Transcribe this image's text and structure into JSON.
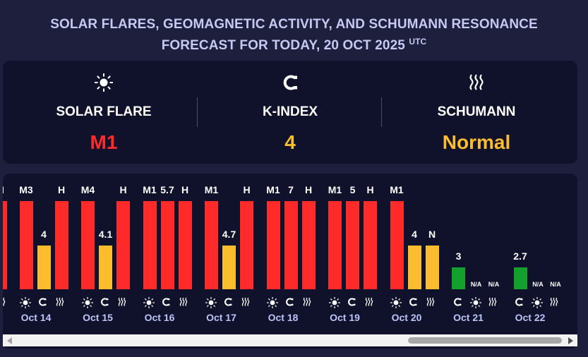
{
  "header": {
    "line1": "SOLAR FLARES, GEOMAGNETIC ACTIVITY, AND SCHUMANN RESONANCE",
    "line2": "FORECAST FOR TODAY, 20 OCT 2025",
    "utc": "UTC"
  },
  "summary": {
    "items": [
      {
        "label": "SOLAR FLARE",
        "value": "M1",
        "icon": "sun-icon",
        "color": "#ff2a2a"
      },
      {
        "label": "K-INDEX",
        "value": "4",
        "icon": "magnet-icon",
        "color": "#fbbd2e"
      },
      {
        "label": "SCHUMANN",
        "value": "Normal",
        "icon": "waves-icon",
        "color": "#fbbd2e"
      }
    ]
  },
  "colors": {
    "high": "#ff2a2a",
    "medium": "#fbbd2e",
    "low": "#14a02c"
  },
  "chart_data": {
    "type": "bar",
    "note": "Bar heights are qualitative indicators; printed labels are the values.",
    "partial_left": {
      "label": "I",
      "color": "red",
      "level": 1.0
    },
    "days": [
      {
        "date": "Oct 14",
        "bars": [
          {
            "kind": "solar",
            "label": "M3",
            "color": "red",
            "level": 1.0
          },
          {
            "kind": "kindex",
            "label": "4",
            "color": "yellow",
            "level": 0.5
          },
          {
            "kind": "schumann",
            "label": "H",
            "color": "red",
            "level": 1.0
          }
        ]
      },
      {
        "date": "Oct 15",
        "bars": [
          {
            "kind": "solar",
            "label": "M4",
            "color": "red",
            "level": 1.0
          },
          {
            "kind": "kindex",
            "label": "4.1",
            "color": "yellow",
            "level": 0.5
          },
          {
            "kind": "schumann",
            "label": "H",
            "color": "red",
            "level": 1.0
          }
        ]
      },
      {
        "date": "Oct 16",
        "bars": [
          {
            "kind": "solar",
            "label": "M1",
            "color": "red",
            "level": 1.0
          },
          {
            "kind": "kindex",
            "label": "5.7",
            "color": "red",
            "level": 1.0
          },
          {
            "kind": "schumann",
            "label": "H",
            "color": "red",
            "level": 1.0
          }
        ]
      },
      {
        "date": "Oct 17",
        "bars": [
          {
            "kind": "solar",
            "label": "M1",
            "color": "red",
            "level": 1.0
          },
          {
            "kind": "kindex",
            "label": "4.7",
            "color": "yellow",
            "level": 0.5
          },
          {
            "kind": "schumann",
            "label": "H",
            "color": "red",
            "level": 1.0
          }
        ]
      },
      {
        "date": "Oct 18",
        "bars": [
          {
            "kind": "solar",
            "label": "M1",
            "color": "red",
            "level": 1.0
          },
          {
            "kind": "kindex",
            "label": "7",
            "color": "red",
            "level": 1.0
          },
          {
            "kind": "schumann",
            "label": "H",
            "color": "red",
            "level": 1.0
          }
        ]
      },
      {
        "date": "Oct 19",
        "bars": [
          {
            "kind": "solar",
            "label": "M1",
            "color": "red",
            "level": 1.0
          },
          {
            "kind": "kindex",
            "label": "5",
            "color": "red",
            "level": 1.0
          },
          {
            "kind": "schumann",
            "label": "H",
            "color": "red",
            "level": 1.0
          }
        ]
      },
      {
        "date": "Oct 20",
        "bars": [
          {
            "kind": "solar",
            "label": "M1",
            "color": "red",
            "level": 1.0
          },
          {
            "kind": "kindex",
            "label": "4",
            "color": "yellow",
            "level": 0.5
          },
          {
            "kind": "schumann",
            "label": "N",
            "color": "yellow",
            "level": 0.5
          }
        ]
      },
      {
        "date": "Oct 21",
        "bars": [
          {
            "kind": "kindex",
            "label": "3",
            "color": "green",
            "level": 0.25
          },
          {
            "kind": "solar",
            "label": "N/A",
            "color": "none",
            "level": 0
          },
          {
            "kind": "schumann",
            "label": "N/A",
            "color": "none",
            "level": 0
          }
        ]
      },
      {
        "date": "Oct 22",
        "bars": [
          {
            "kind": "kindex",
            "label": "2.7",
            "color": "green",
            "level": 0.25
          },
          {
            "kind": "solar",
            "label": "N/A",
            "color": "none",
            "level": 0
          },
          {
            "kind": "schumann",
            "label": "N/A",
            "color": "none",
            "level": 0
          }
        ]
      }
    ]
  }
}
